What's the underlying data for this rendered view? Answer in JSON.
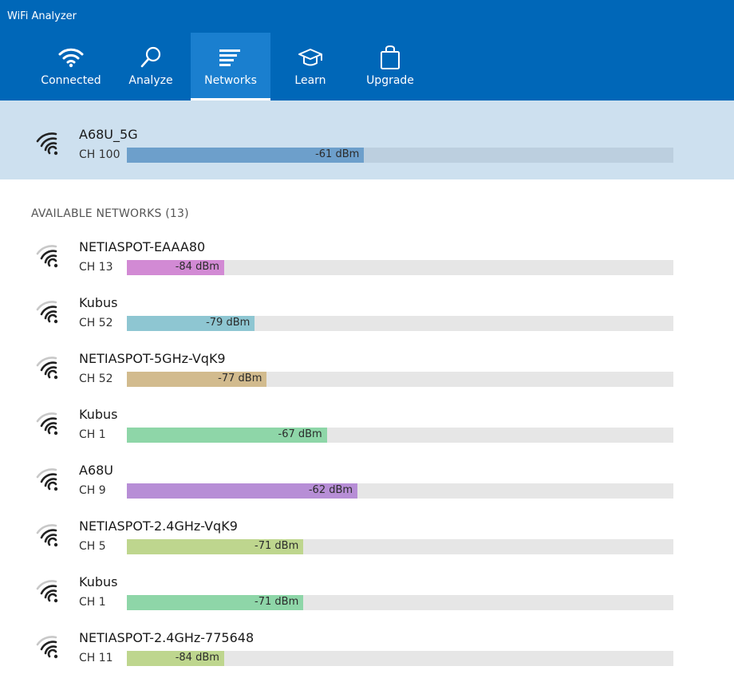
{
  "app": {
    "title": "WiFi Analyzer"
  },
  "nav": [
    {
      "label": "Connected",
      "icon": "wifi-icon",
      "active": false
    },
    {
      "label": "Analyze",
      "icon": "magnifier-icon",
      "active": false
    },
    {
      "label": "Networks",
      "icon": "list-icon",
      "active": true
    },
    {
      "label": "Learn",
      "icon": "graduation-cap-icon",
      "active": false
    },
    {
      "label": "Upgrade",
      "icon": "shopping-bag-icon",
      "active": false
    }
  ],
  "connected": {
    "name": "A68U_5G",
    "channel": "CH 100",
    "signal": "-61 dBm",
    "signal_fraction": 0.434,
    "color": "#6d9fcb"
  },
  "available": {
    "title": "AVAILABLE NETWORKS (13)",
    "networks": [
      {
        "name": "NETIASPOT-EAAA80",
        "channel": "CH 13",
        "signal": "-84 dBm",
        "signal_fraction": 0.178,
        "color": "#d28ad4"
      },
      {
        "name": "Kubus",
        "channel": "CH 52",
        "signal": "-79 dBm",
        "signal_fraction": 0.234,
        "color": "#8ec6d2"
      },
      {
        "name": "NETIASPOT-5GHz-VqK9",
        "channel": "CH 52",
        "signal": "-77 dBm",
        "signal_fraction": 0.256,
        "color": "#d2bb8e"
      },
      {
        "name": "Kubus",
        "channel": "CH 1",
        "signal": "-67 dBm",
        "signal_fraction": 0.366,
        "color": "#8ed6a8"
      },
      {
        "name": "A68U",
        "channel": "CH 9",
        "signal": "-62 dBm",
        "signal_fraction": 0.422,
        "color": "#b78ed6"
      },
      {
        "name": "NETIASPOT-2.4GHz-VqK9",
        "channel": "CH 5",
        "signal": "-71 dBm",
        "signal_fraction": 0.323,
        "color": "#bed68e"
      },
      {
        "name": "Kubus",
        "channel": "CH 1",
        "signal": "-71 dBm",
        "signal_fraction": 0.323,
        "color": "#8ed6a8"
      },
      {
        "name": "NETIASPOT-2.4GHz-775648",
        "channel": "CH 11",
        "signal": "-84 dBm",
        "signal_fraction": 0.178,
        "color": "#bed68e"
      }
    ]
  }
}
